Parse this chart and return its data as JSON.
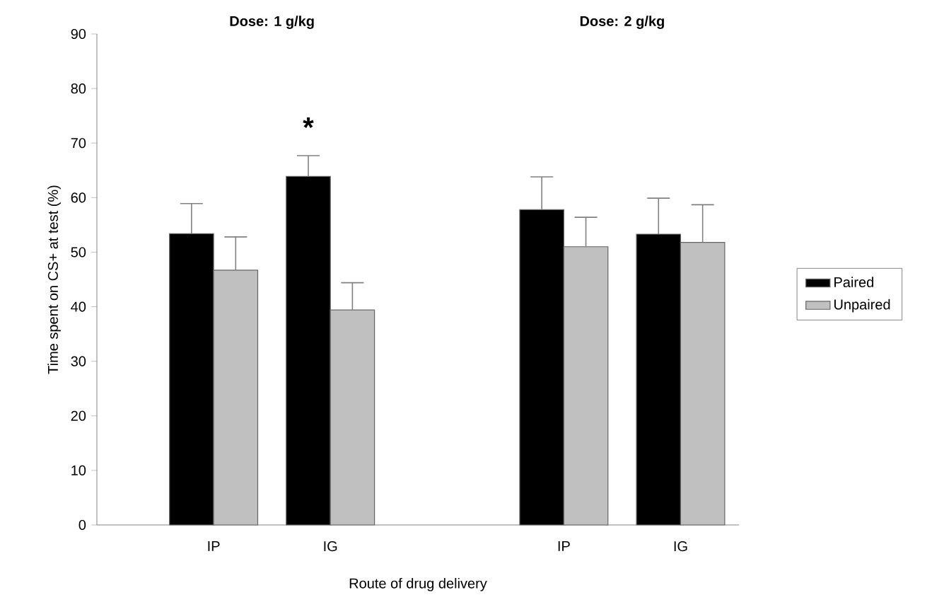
{
  "chart_data": {
    "type": "bar",
    "categories": [
      "IP",
      "IG",
      null,
      "IP",
      "IG"
    ],
    "series": [
      {
        "name": "Paired",
        "color": "#000000",
        "values": [
          53.4,
          63.9,
          null,
          57.8,
          53.3
        ],
        "errors": [
          [
            53.4,
            58.9
          ],
          [
            63.9,
            67.7
          ],
          null,
          [
            57.8,
            63.8
          ],
          [
            53.3,
            59.9
          ]
        ]
      },
      {
        "name": "Unpaired",
        "color": "#c0c0c0",
        "values": [
          46.7,
          39.4,
          null,
          51.0,
          51.8
        ],
        "errors": [
          [
            46.7,
            52.8
          ],
          [
            39.4,
            44.4
          ],
          null,
          [
            51.0,
            56.4
          ],
          [
            51.8,
            58.7
          ]
        ]
      }
    ],
    "xlabel": "Route of drug delivery",
    "ylabel": "Time spent on CS+ at test (%)",
    "ylim": [
      0,
      90
    ],
    "yticks": [
      0,
      10,
      20,
      30,
      40,
      50,
      60,
      70,
      80,
      90
    ],
    "annotations": [
      "Dose: 1 g/kg",
      "Dose: 2 g/kg",
      "*"
    ],
    "legend": "right",
    "grid": false
  }
}
